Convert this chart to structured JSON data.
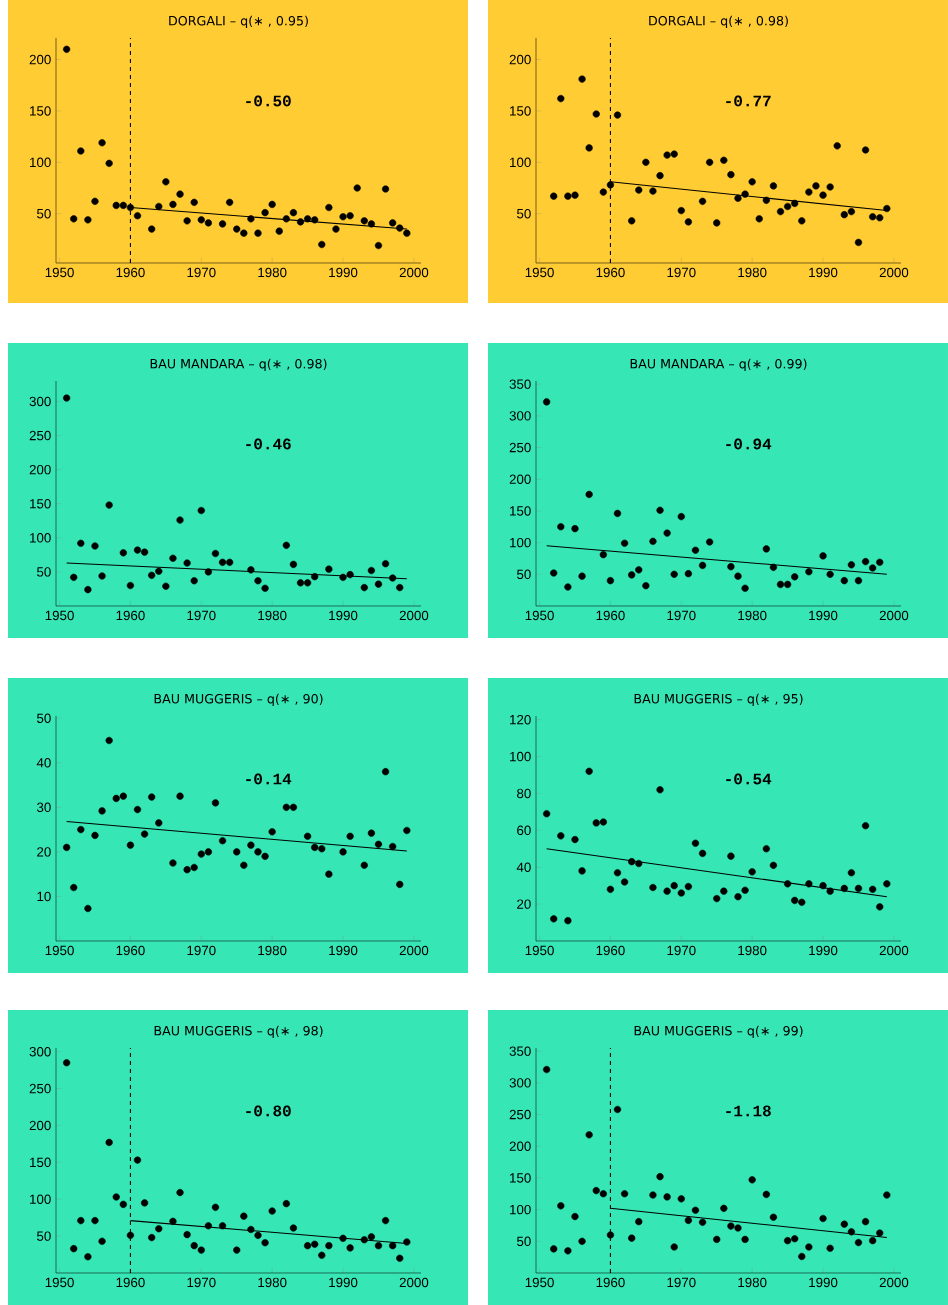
{
  "chart_data": [
    {
      "type": "scatter",
      "title": "DORGALI – q(∗ , 0.95)",
      "xlim": [
        1949.5,
        2001
      ],
      "xticks": [
        1950,
        1960,
        1970,
        1980,
        1990,
        2000
      ],
      "ylim": [
        2,
        221
      ],
      "yticks": [
        50,
        100,
        150,
        200
      ],
      "annotations": [
        "-0.50"
      ],
      "ref_lines": [
        {
          "axis": "x",
          "value": 1960,
          "line_style": "dashed",
          "color": "#000000"
        }
      ],
      "series": [
        {
          "marker": "circle",
          "color": "#000000",
          "x": [
            1951,
            1952,
            1953,
            1954,
            1955,
            1956,
            1957,
            1958,
            1959,
            1960,
            1961,
            1963,
            1964,
            1965,
            1966,
            1967,
            1968,
            1969,
            1970,
            1971,
            1973,
            1974,
            1975,
            1976,
            1977,
            1978,
            1979,
            1980,
            1981,
            1982,
            1983,
            1984,
            1985,
            1986,
            1987,
            1988,
            1989,
            1990,
            1991,
            1992,
            1993,
            1994,
            1995,
            1996,
            1997,
            1998,
            1999
          ],
          "values": [
            210,
            45,
            111,
            44,
            62,
            119,
            99,
            58,
            58,
            56,
            48,
            35,
            57,
            81,
            59,
            69,
            43,
            61,
            44,
            41,
            40,
            61,
            35,
            31,
            45,
            31,
            51,
            59,
            33,
            45,
            51,
            42,
            45,
            44,
            20,
            56,
            35,
            47,
            48,
            75,
            43,
            40,
            19,
            74,
            41,
            36,
            31
          ]
        },
        {
          "type": "line",
          "color": "#000000",
          "x": [
            1960,
            1999
          ],
          "values": [
            56,
            35
          ]
        }
      ]
    },
    {
      "type": "scatter",
      "title": "DORGALI – q(∗ , 0.98)",
      "xlim": [
        1949.5,
        2001
      ],
      "xticks": [
        1950,
        1960,
        1970,
        1980,
        1990,
        2000
      ],
      "ylim": [
        2,
        221
      ],
      "yticks": [
        50,
        100,
        150,
        200
      ],
      "annotations": [
        "-0.77"
      ],
      "ref_lines": [
        {
          "axis": "x",
          "value": 1960,
          "line_style": "dashed",
          "color": "#000000"
        }
      ],
      "series": [
        {
          "marker": "circle",
          "color": "#000000",
          "x": [
            1952,
            1953,
            1954,
            1955,
            1956,
            1957,
            1958,
            1959,
            1960,
            1961,
            1963,
            1964,
            1965,
            1966,
            1967,
            1968,
            1969,
            1970,
            1971,
            1973,
            1974,
            1975,
            1976,
            1977,
            1978,
            1979,
            1980,
            1981,
            1982,
            1983,
            1984,
            1985,
            1986,
            1987,
            1988,
            1989,
            1990,
            1991,
            1992,
            1993,
            1994,
            1995,
            1996,
            1997,
            1998,
            1999
          ],
          "values": [
            67,
            162,
            67,
            68,
            181,
            114,
            147,
            71,
            78,
            146,
            43,
            73,
            100,
            72,
            87,
            107,
            108,
            53,
            42,
            62,
            100,
            41,
            102,
            88,
            65,
            69,
            81,
            45,
            63,
            77,
            52,
            57,
            60,
            43,
            71,
            77,
            68,
            76,
            116,
            49,
            52,
            22,
            112,
            47,
            46,
            55
          ]
        },
        {
          "type": "line",
          "color": "#000000",
          "x": [
            1960,
            1999
          ],
          "values": [
            81,
            53
          ]
        }
      ]
    },
    {
      "type": "scatter",
      "title": "BAU MANDARA – q(∗ , 0.98)",
      "xlim": [
        1949.5,
        2001
      ],
      "xticks": [
        1950,
        1960,
        1970,
        1980,
        1990,
        2000
      ],
      "ylim": [
        0,
        330
      ],
      "yticks": [
        50,
        100,
        150,
        200,
        250,
        300
      ],
      "annotations": [
        "-0.46"
      ],
      "series": [
        {
          "marker": "circle",
          "color": "#000000",
          "x": [
            1951,
            1952,
            1953,
            1954,
            1955,
            1956,
            1957,
            1959,
            1960,
            1961,
            1962,
            1963,
            1964,
            1965,
            1966,
            1967,
            1968,
            1969,
            1970,
            1971,
            1972,
            1973,
            1974,
            1977,
            1978,
            1979,
            1982,
            1983,
            1984,
            1985,
            1986,
            1988,
            1990,
            1991,
            1993,
            1994,
            1995,
            1996,
            1997,
            1998
          ],
          "values": [
            305,
            42,
            92,
            24,
            88,
            44,
            148,
            78,
            30,
            82,
            79,
            45,
            51,
            29,
            70,
            126,
            63,
            37,
            140,
            50,
            77,
            64,
            64,
            53,
            37,
            26,
            89,
            61,
            34,
            34,
            43,
            54,
            42,
            46,
            27,
            52,
            32,
            62,
            41,
            27
          ]
        },
        {
          "type": "line",
          "color": "#000000",
          "x": [
            1951,
            1999
          ],
          "values": [
            63,
            40
          ]
        }
      ]
    },
    {
      "type": "scatter",
      "title": "BAU MANDARA – q(∗ , 0.99)",
      "xlim": [
        1949.5,
        2001
      ],
      "xticks": [
        1950,
        1960,
        1970,
        1980,
        1990,
        2000
      ],
      "ylim": [
        0,
        355
      ],
      "yticks": [
        50,
        100,
        150,
        200,
        250,
        300,
        350
      ],
      "annotations": [
        "-0.94"
      ],
      "series": [
        {
          "marker": "circle",
          "color": "#000000",
          "x": [
            1951,
            1952,
            1953,
            1954,
            1955,
            1956,
            1957,
            1959,
            1960,
            1961,
            1962,
            1963,
            1964,
            1965,
            1966,
            1967,
            1968,
            1969,
            1970,
            1971,
            1972,
            1973,
            1974,
            1977,
            1978,
            1979,
            1982,
            1983,
            1984,
            1985,
            1986,
            1988,
            1990,
            1991,
            1993,
            1994,
            1995,
            1996,
            1997,
            1998
          ],
          "values": [
            322,
            52,
            125,
            30,
            122,
            47,
            176,
            81,
            40,
            146,
            99,
            49,
            57,
            32,
            102,
            151,
            115,
            50,
            141,
            51,
            88,
            64,
            101,
            62,
            47,
            28,
            90,
            61,
            34,
            34,
            46,
            54,
            79,
            50,
            40,
            65,
            40,
            70,
            60,
            69
          ]
        },
        {
          "type": "line",
          "color": "#000000",
          "x": [
            1951,
            1999
          ],
          "values": [
            95,
            50
          ]
        }
      ]
    },
    {
      "type": "scatter",
      "title": "BAU MUGGERIS – q(∗ , 90)",
      "xlim": [
        1949.5,
        2001
      ],
      "xticks": [
        1950,
        1960,
        1970,
        1980,
        1990,
        2000
      ],
      "ylim": [
        0,
        50.5
      ],
      "yticks": [
        10,
        20,
        30,
        40,
        50
      ],
      "annotations": [
        "-0.14"
      ],
      "series": [
        {
          "marker": "circle",
          "color": "#000000",
          "x": [
            1951,
            1952,
            1953,
            1954,
            1955,
            1956,
            1957,
            1958,
            1959,
            1960,
            1961,
            1962,
            1963,
            1964,
            1966,
            1967,
            1968,
            1969,
            1970,
            1971,
            1972,
            1973,
            1975,
            1976,
            1977,
            1978,
            1979,
            1980,
            1982,
            1983,
            1985,
            1986,
            1987,
            1988,
            1990,
            1991,
            1993,
            1994,
            1995,
            1996,
            1997,
            1998,
            1999
          ],
          "values": [
            21,
            12,
            25,
            7.3,
            23.7,
            29.2,
            45,
            32,
            32.5,
            21.5,
            29.5,
            24,
            32.3,
            26.5,
            17.5,
            32.5,
            16,
            16.5,
            19.5,
            20,
            31,
            22.5,
            20,
            17,
            21.5,
            20,
            19,
            24.5,
            30,
            30,
            23.5,
            21,
            20.7,
            15,
            20,
            23.5,
            17,
            24.2,
            21.7,
            38,
            21.2,
            12.7,
            24.8
          ]
        },
        {
          "type": "line",
          "color": "#000000",
          "x": [
            1951,
            1999
          ],
          "values": [
            26.8,
            20.2
          ]
        }
      ]
    },
    {
      "type": "scatter",
      "title": "BAU MUGGERIS – q(∗ , 95)",
      "xlim": [
        1949.5,
        2001
      ],
      "xticks": [
        1950,
        1960,
        1970,
        1980,
        1990,
        2000
      ],
      "ylim": [
        0,
        122
      ],
      "yticks": [
        20,
        40,
        60,
        80,
        100,
        120
      ],
      "annotations": [
        "-0.54"
      ],
      "series": [
        {
          "marker": "circle",
          "color": "#000000",
          "x": [
            1951,
            1952,
            1953,
            1954,
            1955,
            1956,
            1957,
            1958,
            1959,
            1960,
            1961,
            1962,
            1963,
            1964,
            1966,
            1967,
            1968,
            1969,
            1970,
            1971,
            1972,
            1973,
            1975,
            1976,
            1977,
            1978,
            1979,
            1980,
            1982,
            1983,
            1985,
            1986,
            1987,
            1988,
            1990,
            1991,
            1993,
            1994,
            1995,
            1996,
            1997,
            1998,
            1999
          ],
          "values": [
            69,
            12,
            57,
            11,
            55,
            38,
            92,
            64,
            64.5,
            28,
            37,
            32,
            43,
            42,
            29,
            82,
            27,
            30,
            26,
            29.5,
            53,
            47.5,
            23,
            27,
            46,
            24,
            27.5,
            37.5,
            50,
            41,
            31,
            22,
            21,
            31,
            30,
            27,
            28.5,
            37,
            28.5,
            62.5,
            28,
            18.5,
            31
          ]
        },
        {
          "type": "line",
          "color": "#000000",
          "x": [
            1951,
            1999
          ],
          "values": [
            50,
            24
          ]
        }
      ]
    },
    {
      "type": "scatter",
      "title": "BAU MUGGERIS – q(∗ , 98)",
      "xlim": [
        1949.5,
        2001
      ],
      "xticks": [
        1950,
        1960,
        1970,
        1980,
        1990,
        2000
      ],
      "ylim": [
        0,
        305
      ],
      "yticks": [
        50,
        100,
        150,
        200,
        250,
        300
      ],
      "annotations": [
        "-0.80"
      ],
      "ref_lines": [
        {
          "axis": "x",
          "value": 1960,
          "line_style": "dashed",
          "color": "#000000"
        }
      ],
      "series": [
        {
          "marker": "circle",
          "color": "#000000",
          "x": [
            1951,
            1952,
            1953,
            1954,
            1955,
            1956,
            1957,
            1958,
            1959,
            1960,
            1961,
            1962,
            1963,
            1964,
            1966,
            1967,
            1968,
            1969,
            1970,
            1971,
            1972,
            1973,
            1975,
            1976,
            1977,
            1978,
            1979,
            1980,
            1982,
            1983,
            1985,
            1986,
            1987,
            1988,
            1990,
            1991,
            1993,
            1994,
            1995,
            1996,
            1997,
            1998,
            1999
          ],
          "values": [
            285,
            33,
            71,
            22,
            71,
            43,
            177,
            103,
            93,
            51,
            153,
            95,
            48,
            60,
            70,
            109,
            52,
            37,
            31,
            64,
            89,
            64,
            31,
            77,
            59,
            51,
            41,
            84,
            94,
            61,
            37,
            39,
            24,
            37,
            47,
            34,
            45,
            49,
            37,
            71,
            37,
            20,
            42
          ]
        },
        {
          "type": "line",
          "color": "#000000",
          "x": [
            1960,
            1999
          ],
          "values": [
            71,
            40
          ]
        }
      ]
    },
    {
      "type": "scatter",
      "title": "BAU MUGGERIS – q(∗ , 99)",
      "xlim": [
        1949.5,
        2001
      ],
      "xticks": [
        1950,
        1960,
        1970,
        1980,
        1990,
        2000
      ],
      "ylim": [
        0,
        355
      ],
      "yticks": [
        50,
        100,
        150,
        200,
        250,
        300,
        350
      ],
      "annotations": [
        "-1.18"
      ],
      "ref_lines": [
        {
          "axis": "x",
          "value": 1960,
          "line_style": "dashed",
          "color": "#000000"
        }
      ],
      "series": [
        {
          "marker": "circle",
          "color": "#000000",
          "x": [
            1951,
            1952,
            1953,
            1954,
            1955,
            1956,
            1957,
            1958,
            1959,
            1960,
            1961,
            1962,
            1963,
            1964,
            1966,
            1967,
            1968,
            1969,
            1970,
            1971,
            1972,
            1973,
            1975,
            1976,
            1977,
            1978,
            1979,
            1980,
            1982,
            1983,
            1985,
            1986,
            1987,
            1988,
            1990,
            1991,
            1993,
            1994,
            1995,
            1996,
            1997,
            1998,
            1999
          ],
          "values": [
            321,
            38,
            106,
            35,
            89,
            50,
            218,
            130,
            125,
            60,
            258,
            125,
            55,
            81,
            123,
            152,
            120,
            41,
            117,
            83,
            99,
            80,
            53,
            102,
            74,
            71,
            53,
            147,
            124,
            88,
            51,
            54,
            26,
            41,
            86,
            39,
            77,
            65,
            48,
            81,
            51,
            63,
            123
          ]
        },
        {
          "type": "line",
          "color": "#000000",
          "x": [
            1960,
            1999
          ],
          "values": [
            102,
            56
          ]
        }
      ]
    }
  ]
}
